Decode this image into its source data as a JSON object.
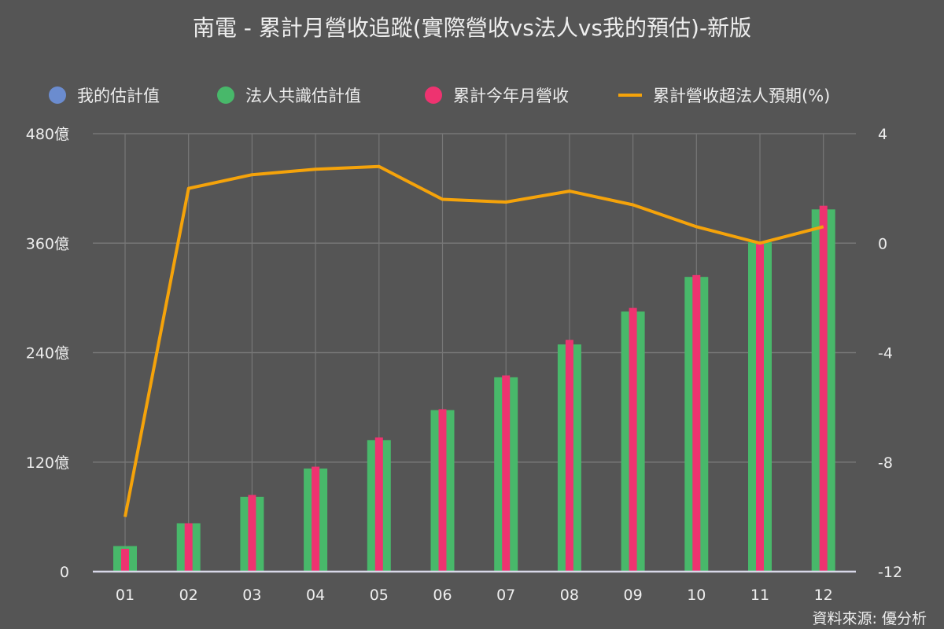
{
  "title": "南電 - 累計月營收追蹤(實際營收vs法人vs我的預估)-新版",
  "legend": [
    {
      "label": "我的估計值",
      "type": "dot",
      "color": "#6b8ccf"
    },
    {
      "label": "法人共識估計值",
      "type": "dot",
      "color": "#48b86a"
    },
    {
      "label": "累計今年月營收",
      "type": "dot",
      "color": "#ee3370"
    },
    {
      "label": "累計營收超法人預期(%)",
      "type": "line",
      "color": "#f5a30a"
    }
  ],
  "source": "資料來源: 優分析",
  "colors": {
    "background": "#555555",
    "grid": "#777777",
    "axis": "#d8d8e8",
    "green": "#48b86a",
    "pink": "#ee3370",
    "orange": "#f5a30a",
    "blue": "#6b8ccf"
  },
  "chart_data": {
    "type": "bar",
    "title": "南電 - 累計月營收追蹤(實際營收vs法人vs我的預估)-新版",
    "categories": [
      "01",
      "02",
      "03",
      "04",
      "05",
      "06",
      "07",
      "08",
      "09",
      "10",
      "11",
      "12"
    ],
    "series": [
      {
        "name": "我的估計值",
        "type": "bar",
        "axis": "left",
        "values": [
          null,
          null,
          null,
          null,
          null,
          null,
          null,
          null,
          null,
          null,
          null,
          null
        ]
      },
      {
        "name": "法人共識估計值",
        "type": "bar",
        "axis": "left",
        "values": [
          28,
          53,
          82,
          113,
          144,
          177,
          213,
          249,
          285,
          323,
          361,
          397
        ]
      },
      {
        "name": "累計今年月營收",
        "type": "bar",
        "axis": "left",
        "values": [
          25,
          53,
          84,
          115,
          147,
          178,
          215,
          254,
          289,
          325,
          359,
          401
        ]
      },
      {
        "name": "累計營收超法人預期(%)",
        "type": "line",
        "axis": "right",
        "values": [
          -10.0,
          2.0,
          2.5,
          2.7,
          2.8,
          1.6,
          1.5,
          1.9,
          1.4,
          0.6,
          0.0,
          0.6
        ]
      }
    ],
    "left_axis": {
      "ticks": [
        "0",
        "120億",
        "240億",
        "360億",
        "480億"
      ],
      "tick_values": [
        0,
        120,
        240,
        360,
        480
      ],
      "ylim": [
        0,
        480
      ],
      "unit": "億"
    },
    "right_axis": {
      "ticks": [
        "-12",
        "-8",
        "-4",
        "0",
        "4"
      ],
      "tick_values": [
        -12,
        -8,
        -4,
        0,
        4
      ],
      "ylim": [
        -12,
        4
      ]
    },
    "xlabel": "",
    "ylabel": "",
    "grid": true,
    "legend_position": "top"
  }
}
